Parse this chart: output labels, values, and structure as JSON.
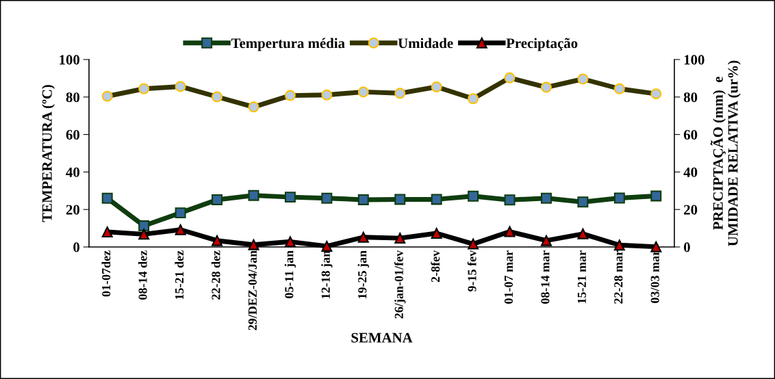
{
  "chart_data": {
    "type": "line",
    "xlabel": "SEMANA",
    "ylabel": "TEMPERATURA (ºC)",
    "y2label": "PRECIPTAÇÃO (mm)  e\nUMIDADE RELATIVA (ur%)",
    "categories": [
      "01-07dez",
      "08-14 dez",
      "15-21 dez",
      "22-28 dez",
      "29/DEZ-04/Jan",
      "05-11 jan",
      "12-18 jan",
      "19-25 jan",
      "26/jan-01/fev",
      "2-8fev",
      "9-15 fev",
      "01-07 mar",
      "08-14 mar",
      "15-21 mar",
      "22-28 mar",
      "03/03 mar"
    ],
    "series": [
      {
        "name": "Tempertura média",
        "color": "#336699",
        "marker": "square",
        "values": [
          26.0,
          11.3,
          18.2,
          25.2,
          27.5,
          26.6,
          26.0,
          25.2,
          25.4,
          25.4,
          27.1,
          25.1,
          26.0,
          24.0,
          26.1,
          27.2
        ]
      },
      {
        "name": "Umidade",
        "color": "#b8cce4",
        "marker": "circle",
        "axis": "y2",
        "values": [
          80.4,
          84.4,
          85.6,
          80.1,
          74.7,
          80.8,
          81.1,
          82.7,
          82.0,
          85.4,
          79.1,
          90.2,
          85.2,
          89.6,
          84.4,
          81.7
        ]
      },
      {
        "name": "Preciptação",
        "color": "#c00000",
        "marker": "triangle",
        "axis": "y2",
        "values": [
          8.0,
          6.8,
          9.2,
          3.4,
          1.2,
          2.8,
          0.4,
          5.2,
          4.7,
          7.3,
          1.6,
          8.2,
          3.4,
          7.0,
          1.0,
          0.1
        ]
      }
    ],
    "ylim": [
      0,
      100
    ],
    "yticks": [
      0,
      20,
      40,
      60,
      80,
      100
    ],
    "y2lim": [
      0,
      100
    ],
    "y2ticks": [
      0,
      20,
      40,
      60,
      80,
      100
    ],
    "grid": false,
    "legend": "top",
    "line_style": "solid"
  }
}
